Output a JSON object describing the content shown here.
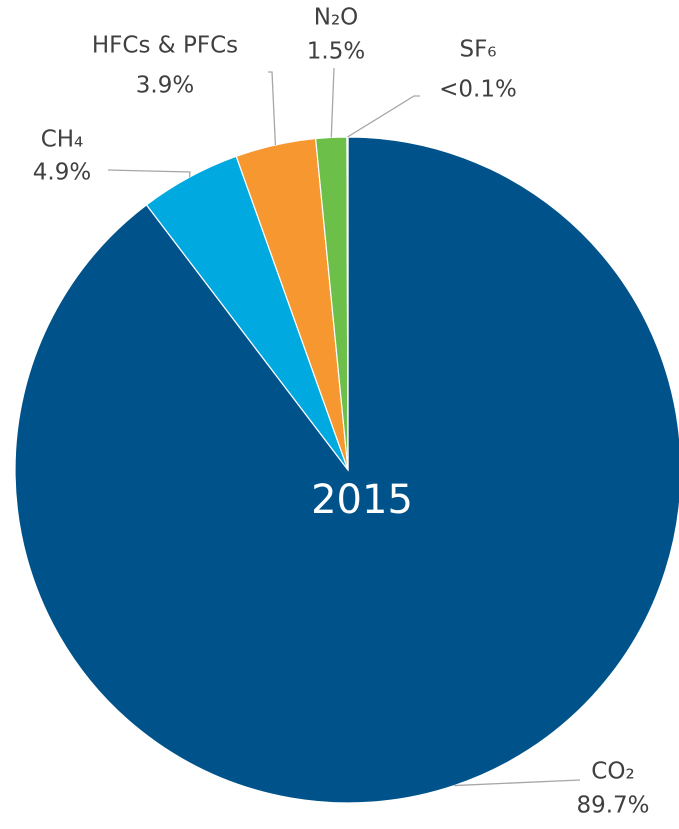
{
  "chart_data": {
    "type": "pie",
    "center_label": "2015",
    "categories": [
      "CO₂",
      "CH₄",
      "HFCs & PFCs",
      "N₂O",
      "SF₆"
    ],
    "values": [
      89.7,
      4.9,
      3.9,
      1.5,
      0.05
    ],
    "value_labels": [
      "89.7%",
      "4.9%",
      "3.9%",
      "1.5%",
      "<0.1%"
    ],
    "colors": [
      "#00538a",
      "#00a9e0",
      "#f7972f",
      "#6cc04a",
      "#7f7f7f"
    ],
    "start_angle": 0,
    "direction": "clockwise"
  }
}
